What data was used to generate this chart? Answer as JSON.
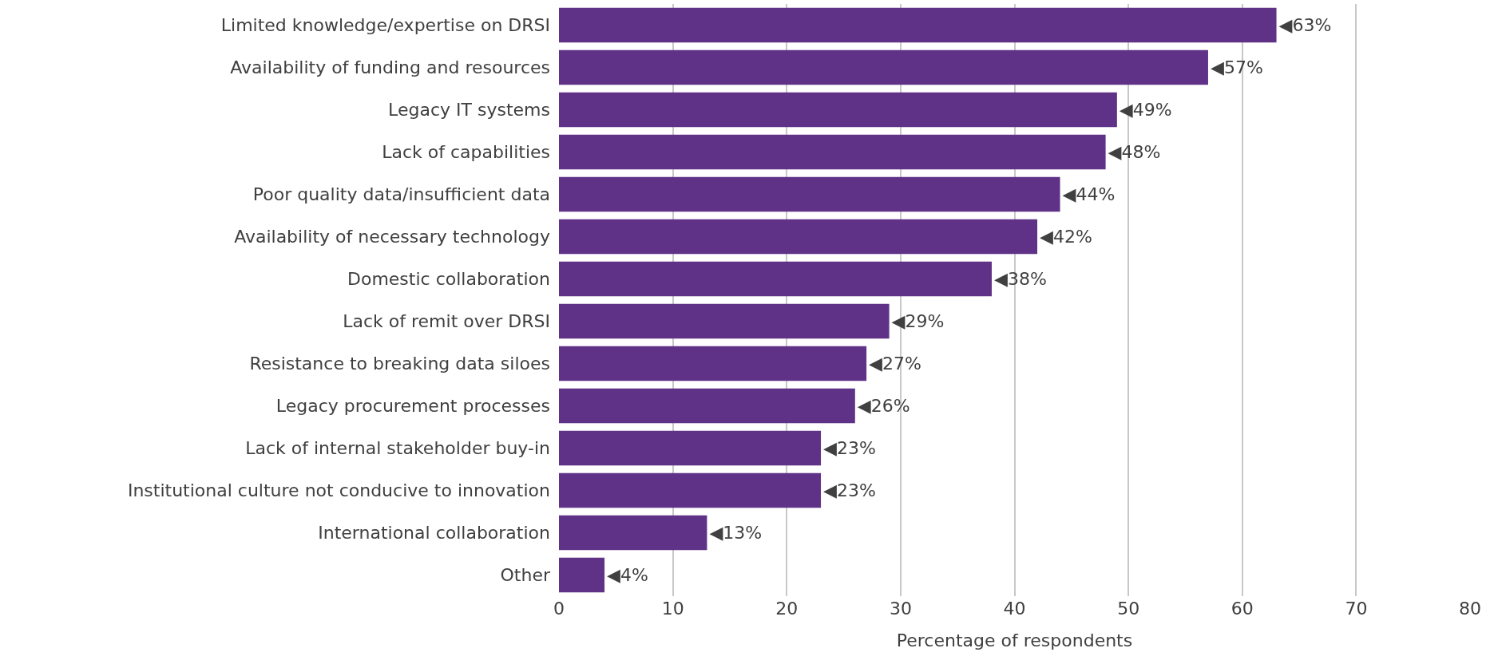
{
  "chart_data": {
    "type": "bar",
    "orientation": "horizontal",
    "xlabel": "Percentage of respondents",
    "categories": [
      "Limited knowledge/expertise on DRSI",
      "Availability of funding and resources",
      "Legacy IT systems",
      "Lack of capabilities",
      "Poor quality data/insufficient data",
      "Availability of necessary technology",
      "Domestic collaboration",
      "Lack of remit over DRSI",
      "Resistance to breaking data siloes",
      "Legacy procurement processes",
      "Lack of internal stakeholder buy-in",
      "Institutional culture not conducive to innovation",
      "International collaboration",
      "Other"
    ],
    "values": [
      63,
      57,
      49,
      48,
      44,
      42,
      38,
      29,
      27,
      26,
      23,
      23,
      13,
      4
    ],
    "value_labels": [
      "◀63%",
      "◀57%",
      "◀49%",
      "◀48%",
      "◀44%",
      "◀42%",
      "◀38%",
      "◀29%",
      "◀27%",
      "◀26%",
      "◀23%",
      "◀23%",
      "◀13%",
      "◀4%"
    ],
    "color": "#5f3287",
    "xlim": [
      0,
      80
    ],
    "xticks": [
      0,
      10,
      20,
      30,
      40,
      50,
      60,
      70,
      80
    ],
    "grid": "x",
    "legend": false
  }
}
